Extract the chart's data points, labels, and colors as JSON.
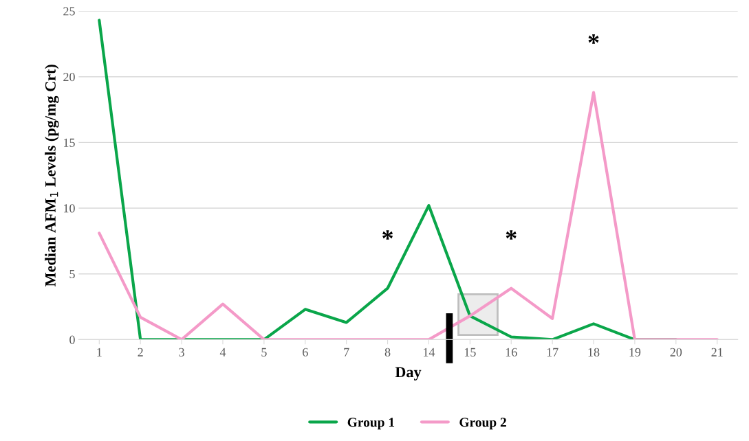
{
  "chart_data": {
    "type": "line",
    "xlabel": "Day",
    "ylabel": "Median AFM$_{1}$ Levels (pg/mg Crt)",
    "categories": [
      "1",
      "2",
      "3",
      "4",
      "5",
      "6",
      "7",
      "8",
      "14",
      "15",
      "16",
      "17",
      "18",
      "19",
      "20",
      "21"
    ],
    "series": [
      {
        "name": "Group 1",
        "color": "#0aa64a",
        "values": [
          24.3,
          0,
          0,
          0,
          0,
          2.3,
          1.3,
          3.9,
          10.2,
          1.8,
          0.2,
          0,
          1.2,
          0,
          0,
          null
        ]
      },
      {
        "name": "Group 2",
        "color": "#f49ac8",
        "values": [
          8.1,
          1.7,
          0,
          2.7,
          0,
          0,
          0,
          0,
          0,
          1.8,
          3.9,
          1.6,
          18.8,
          0,
          0,
          0
        ]
      }
    ],
    "ylim": [
      0,
      25
    ],
    "yticks": [
      0,
      5,
      10,
      15,
      20,
      25
    ],
    "grid": "y",
    "legend": "bottom",
    "marker": "none",
    "line_style": "solid",
    "annotations": [
      {
        "text": "*",
        "x": "8",
        "y": 3.9
      },
      {
        "text": "*",
        "x": "16",
        "y": 3.9
      },
      {
        "text": "*",
        "x": "18",
        "y": 18.8
      }
    ]
  }
}
